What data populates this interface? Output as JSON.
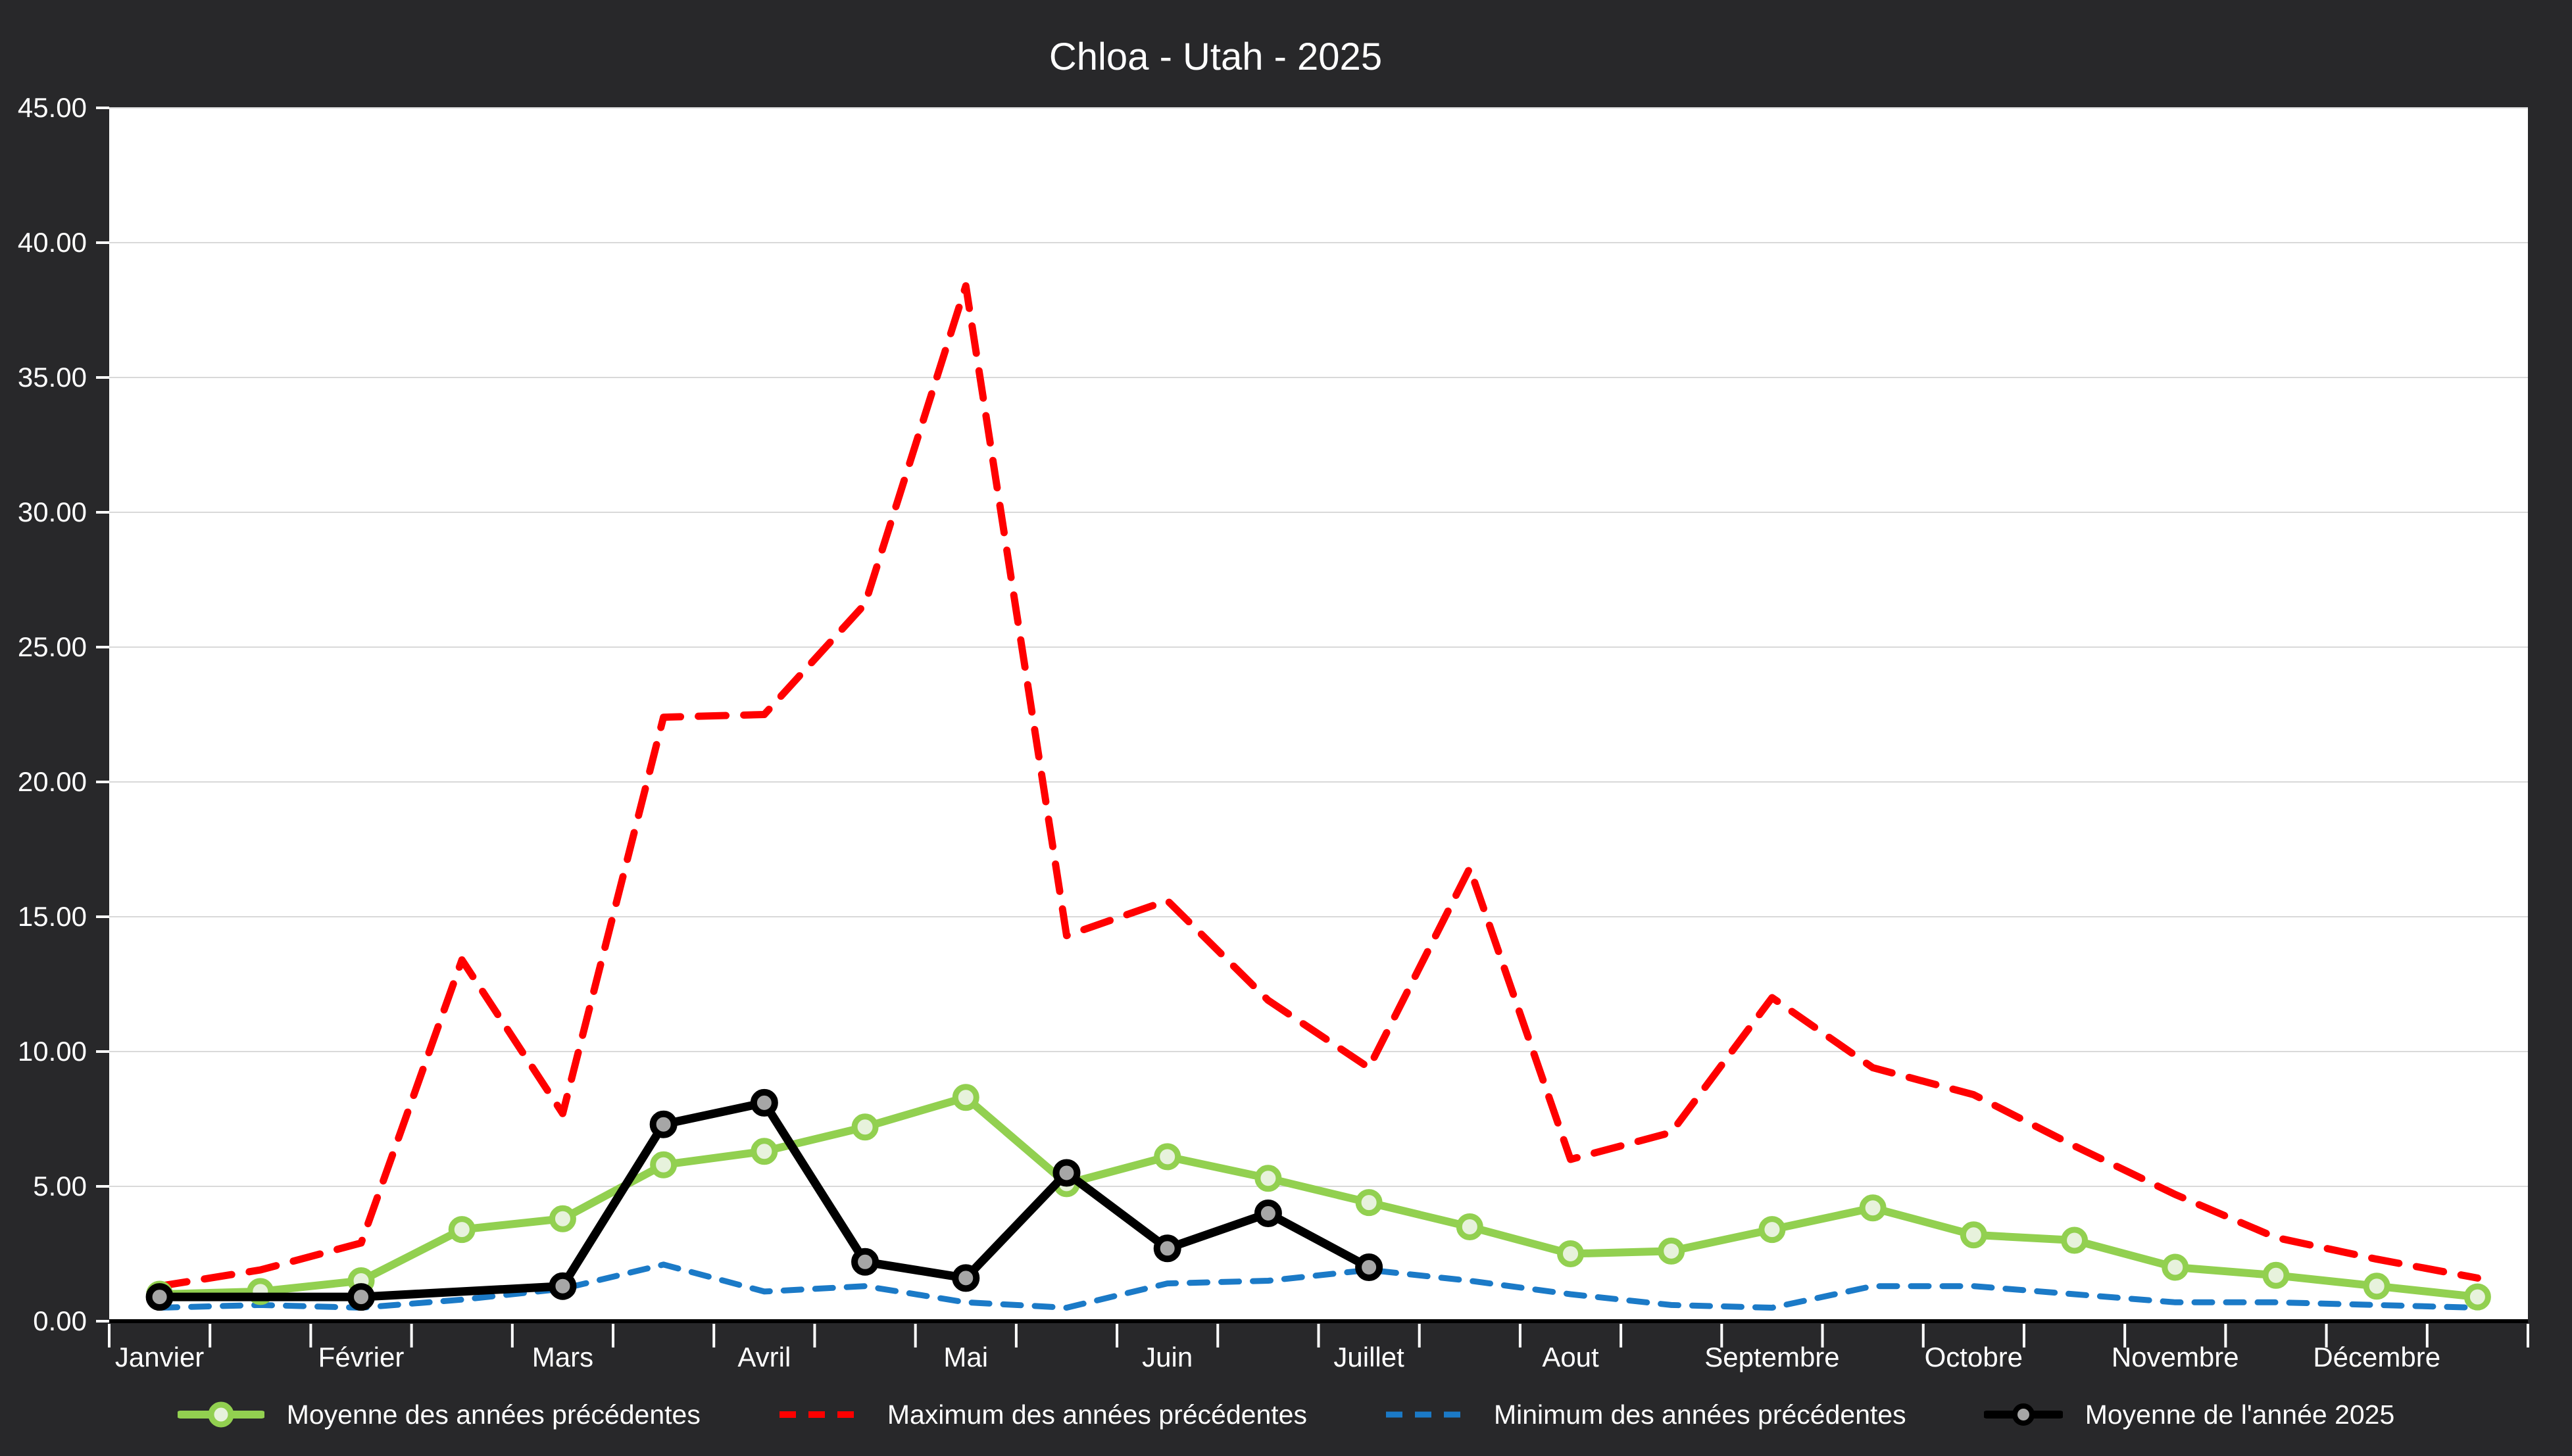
{
  "title": "Chloa  - Utah - 2025",
  "colors": {
    "background": "#28282A",
    "plot_background": "#FFFFFF",
    "gridline": "#D9D9D9",
    "axis_line": "#000000",
    "tick": "#FFFFFF",
    "text": "#FFFFFF"
  },
  "chart_data": {
    "type": "line",
    "title": "Chloa  - Utah - 2025",
    "xlabel": "",
    "ylabel": "",
    "ylim": [
      0,
      45
    ],
    "y_tick_step": 5,
    "y_tick_labels": [
      "0.00",
      "5.00",
      "10.00",
      "15.00",
      "20.00",
      "25.00",
      "30.00",
      "35.00",
      "40.00",
      "45.00"
    ],
    "grid": true,
    "legend_position": "bottom",
    "months": [
      "Janvier",
      "Février",
      "Mars",
      "Avril",
      "Mai",
      "Juin",
      "Juillet",
      "Aout",
      "Septembre",
      "Octobre",
      "Novembre",
      "Décembre"
    ],
    "points_per_month": 2,
    "series": [
      {
        "name": "Moyenne des années précédentes",
        "color": "#92D050",
        "marker": "circle",
        "marker_fill": "#E7F2DC",
        "style": "solid",
        "values": [
          1.0,
          1.1,
          1.5,
          3.4,
          3.8,
          5.8,
          6.3,
          7.2,
          8.3,
          5.1,
          6.1,
          5.3,
          4.4,
          3.5,
          2.5,
          2.6,
          3.4,
          4.2,
          3.2,
          3.0,
          2.0,
          1.7,
          1.3,
          0.9
        ]
      },
      {
        "name": "Maximum des années précédentes",
        "color": "#FF0000",
        "marker": "none",
        "style": "dashed",
        "values": [
          1.3,
          1.9,
          2.9,
          13.4,
          7.7,
          22.4,
          22.5,
          26.6,
          38.4,
          14.3,
          15.6,
          11.9,
          9.4,
          16.8,
          6.0,
          7.0,
          12.0,
          9.4,
          8.4,
          6.5,
          4.7,
          3.1,
          2.3,
          1.6
        ]
      },
      {
        "name": "Minimum des années précédentes",
        "color": "#1B7AC7",
        "marker": "none",
        "style": "dashed",
        "values": [
          0.5,
          0.6,
          0.5,
          0.8,
          1.2,
          2.1,
          1.1,
          1.3,
          0.7,
          0.5,
          1.4,
          1.5,
          1.9,
          1.5,
          1.0,
          0.6,
          0.5,
          1.3,
          1.3,
          1.0,
          0.7,
          0.7,
          0.6,
          0.5
        ]
      },
      {
        "name": "Moyenne de l'année 2025",
        "color": "#000000",
        "marker": "circle",
        "marker_fill": "#A6A6A6",
        "style": "solid",
        "values": [
          0.9,
          null,
          0.9,
          null,
          1.3,
          7.3,
          8.1,
          2.2,
          1.6,
          5.5,
          2.7,
          4.0,
          2.0,
          null,
          null,
          null,
          null,
          null,
          null,
          null,
          null,
          null,
          null,
          null
        ]
      }
    ]
  }
}
